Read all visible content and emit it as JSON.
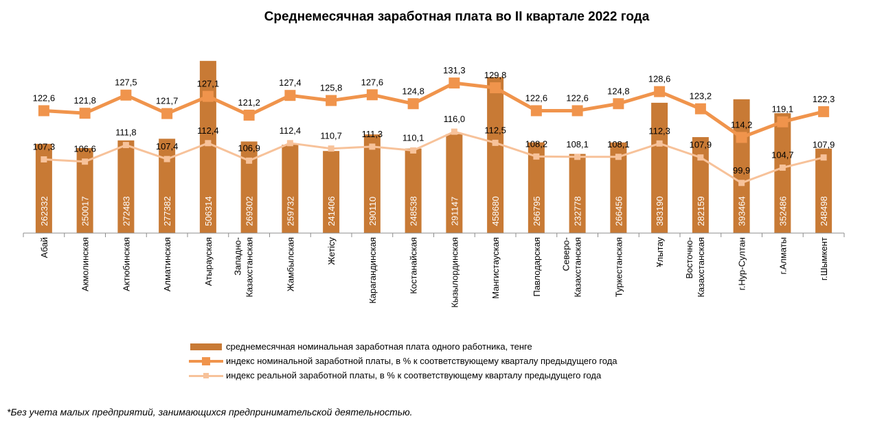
{
  "chart_data": {
    "type": "bar+line",
    "title": "Среднемесячная заработная плата во II квартале 2022 года",
    "categories": [
      "Абай",
      "Акмолинская",
      "Актюбинская",
      "Алматинская",
      "Атырауская",
      "Западно-Казахстанская",
      "Жамбылская",
      "Жетісу",
      "Карагандинская",
      "Костанайская",
      "Кызылординская",
      "Мангистауская",
      "Павлодарская",
      "Северо-Казахстанская",
      "Туркестанская",
      "Ұлытау",
      "Восточно-Казахстанская",
      "г.Нур-Султан",
      "г.Алматы",
      "г.Шымкент"
    ],
    "category_lines": [
      [
        "Абай"
      ],
      [
        "Акмолинская"
      ],
      [
        "Актюбинская"
      ],
      [
        "Алматинская"
      ],
      [
        "Атырауская"
      ],
      [
        "Западно-",
        "Казахстанская"
      ],
      [
        "Жамбылская"
      ],
      [
        "Жетісу"
      ],
      [
        "Карагандинская"
      ],
      [
        "Костанайская"
      ],
      [
        "Кызылординская"
      ],
      [
        "Мангистауская"
      ],
      [
        "Павлодарская"
      ],
      [
        "Северо-",
        "Казахстанская"
      ],
      [
        "Туркестанская"
      ],
      [
        "Ұлытау"
      ],
      [
        "Восточно-",
        "Казахстанская"
      ],
      [
        "г.Нур-Султан"
      ],
      [
        "г.Алматы"
      ],
      [
        "г.Шымкент"
      ]
    ],
    "series": [
      {
        "name": "среднемесячная номинальная заработная плата одного работника, тенге",
        "kind": "bar",
        "color": "#C87A35",
        "values": [
          262332,
          250017,
          272483,
          277382,
          506314,
          269302,
          259732,
          241406,
          290110,
          248538,
          291147,
          458680,
          266795,
          232778,
          266456,
          383190,
          282159,
          393464,
          352486,
          248498
        ],
        "labels": [
          "262332",
          "250017",
          "272483",
          "277382",
          "506314",
          "269302",
          "259732",
          "241406",
          "290110",
          "248538",
          "291147",
          "458680",
          "266795",
          "232778",
          "266456",
          "383190",
          "282159",
          "393464",
          "352486",
          "248498"
        ]
      },
      {
        "name": "индекс номинальной заработной платы, в % к соответствующему кварталу предыдущего года",
        "kind": "line",
        "color": "#F0944C",
        "values": [
          122.6,
          121.8,
          127.5,
          121.7,
          127.1,
          121.2,
          127.4,
          125.8,
          127.6,
          124.8,
          131.3,
          129.8,
          122.6,
          122.6,
          124.8,
          128.6,
          123.2,
          114.2,
          119.1,
          122.3
        ],
        "labels": [
          "122,6",
          "121,8",
          "127,5",
          "121,7",
          "127,1",
          "121,2",
          "127,4",
          "125,8",
          "127,6",
          "124,8",
          "131,3",
          "129,8",
          "122,6",
          "122,6",
          "124,8",
          "128,6",
          "123,2",
          "114,2",
          "119,1",
          "122,3"
        ]
      },
      {
        "name": "индекс реальной заработной платы, в % к соответствующему кварталу предыдущего года",
        "kind": "line",
        "color": "#F7C29A",
        "values": [
          107.3,
          106.6,
          111.8,
          107.4,
          112.4,
          106.9,
          112.4,
          110.7,
          111.3,
          110.1,
          116.0,
          112.5,
          108.2,
          108.1,
          108.1,
          112.3,
          107.9,
          99.9,
          104.7,
          107.9
        ],
        "labels": [
          "107,3",
          "106,6",
          "111,8",
          "107,4",
          "112,4",
          "106,9",
          "112,4",
          "110,7",
          "111,3",
          "110,1",
          "116,0",
          "112,5",
          "108,2",
          "108,1",
          "108,1",
          "112,3",
          "107,9",
          "99,9",
          "104,7",
          "107,9"
        ]
      }
    ],
    "ylim_bar": [
      0,
      510000
    ],
    "ylim_line": [
      85,
      152
    ],
    "grid": false,
    "legend_position": "bottom"
  },
  "legend": {
    "bar": "среднемесячная номинальная заработная плата одного работника, тенге",
    "nominal": "индекс номинальной заработной платы, в % к соответствующему кварталу предыдущего года",
    "real": "индекс реальной заработной платы, в % к соответствующему кварталу предыдущего года"
  },
  "footnote": "*Без учета малых предприятий, занимающихся предпринимательской деятельностью."
}
